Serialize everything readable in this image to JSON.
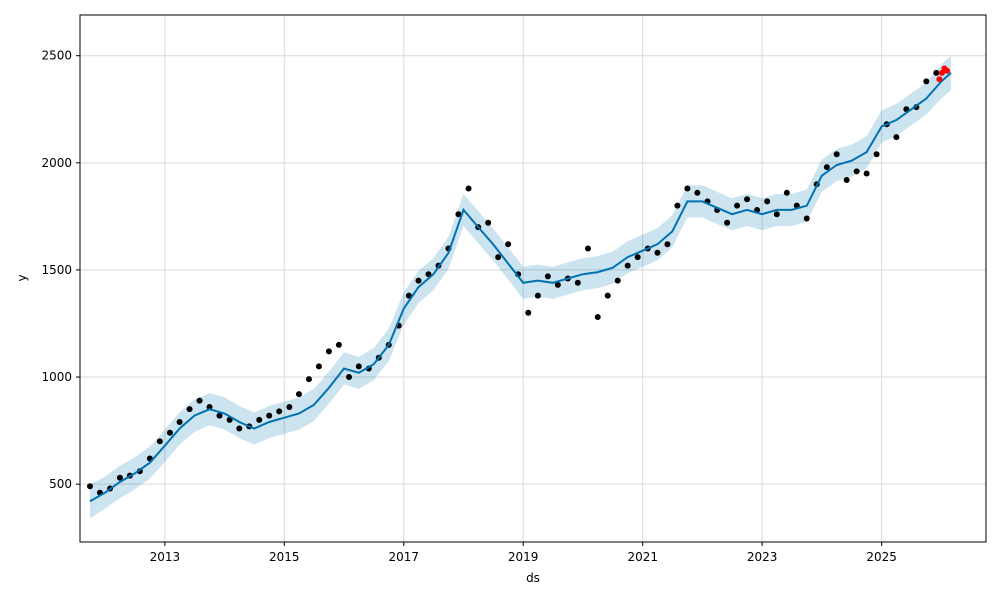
{
  "chart_data": {
    "type": "line",
    "xlabel": "ds",
    "ylabel": "y",
    "x_range": [
      "2011-08-01",
      "2026-10-01"
    ],
    "ylim": [
      230,
      2690
    ],
    "x_ticks": [
      "2013",
      "2015",
      "2017",
      "2019",
      "2021",
      "2023",
      "2025"
    ],
    "y_ticks": [
      500,
      1000,
      1500,
      2000,
      2500
    ],
    "grid": true,
    "colors": {
      "forecast_line": "#0072b2",
      "uncertainty_band": "#0072b2",
      "observations": "#000000",
      "highlight": "#ff0000",
      "grid": "#d9d9d9"
    },
    "forecast_yhat": {
      "dates": [
        "2011-10-01",
        "2012-01-01",
        "2012-04-01",
        "2012-07-01",
        "2012-10-01",
        "2013-01-01",
        "2013-04-01",
        "2013-07-01",
        "2013-10-01",
        "2014-01-01",
        "2014-04-01",
        "2014-07-01",
        "2014-10-01",
        "2015-01-01",
        "2015-04-01",
        "2015-07-01",
        "2015-10-01",
        "2016-01-01",
        "2016-04-01",
        "2016-07-01",
        "2016-10-01",
        "2017-01-01",
        "2017-04-01",
        "2017-07-01",
        "2017-10-01",
        "2018-01-01",
        "2018-04-01",
        "2018-07-01",
        "2018-10-01",
        "2019-01-01",
        "2019-04-01",
        "2019-07-01",
        "2019-10-01",
        "2020-01-01",
        "2020-04-01",
        "2020-07-01",
        "2020-10-01",
        "2021-01-01",
        "2021-04-01",
        "2021-07-01",
        "2021-10-01",
        "2022-01-01",
        "2022-04-01",
        "2022-07-01",
        "2022-10-01",
        "2023-01-01",
        "2023-04-01",
        "2023-07-01",
        "2023-10-01",
        "2024-01-01",
        "2024-04-01",
        "2024-07-01",
        "2024-10-01",
        "2025-01-01",
        "2025-04-01",
        "2025-07-01",
        "2025-10-01",
        "2026-01-01",
        "2026-03-01"
      ],
      "values": [
        420,
        460,
        510,
        550,
        600,
        680,
        760,
        820,
        850,
        830,
        790,
        760,
        790,
        810,
        830,
        870,
        950,
        1040,
        1020,
        1060,
        1150,
        1320,
        1420,
        1480,
        1580,
        1780,
        1700,
        1620,
        1530,
        1440,
        1450,
        1440,
        1460,
        1480,
        1490,
        1510,
        1560,
        1590,
        1620,
        1680,
        1820,
        1820,
        1790,
        1760,
        1780,
        1760,
        1780,
        1780,
        1800,
        1940,
        1990,
        2010,
        2050,
        2170,
        2200,
        2250,
        2300,
        2380,
        2420
      ]
    },
    "uncertainty_band": {
      "dates": [
        "2011-10-01",
        "2012-01-01",
        "2012-04-01",
        "2012-07-01",
        "2012-10-01",
        "2013-01-01",
        "2013-04-01",
        "2013-07-01",
        "2013-10-01",
        "2014-01-01",
        "2014-04-01",
        "2014-07-01",
        "2014-10-01",
        "2015-01-01",
        "2015-04-01",
        "2015-07-01",
        "2015-10-01",
        "2016-01-01",
        "2016-04-01",
        "2016-07-01",
        "2016-10-01",
        "2017-01-01",
        "2017-04-01",
        "2017-07-01",
        "2017-10-01",
        "2018-01-01",
        "2018-04-01",
        "2018-07-01",
        "2018-10-01",
        "2019-01-01",
        "2019-04-01",
        "2019-07-01",
        "2019-10-01",
        "2020-01-01",
        "2020-04-01",
        "2020-07-01",
        "2020-10-01",
        "2021-01-01",
        "2021-04-01",
        "2021-07-01",
        "2021-10-01",
        "2022-01-01",
        "2022-04-01",
        "2022-07-01",
        "2022-10-01",
        "2023-01-01",
        "2023-04-01",
        "2023-07-01",
        "2023-10-01",
        "2024-01-01",
        "2024-04-01",
        "2024-07-01",
        "2024-10-01",
        "2025-01-01",
        "2025-04-01",
        "2025-07-01",
        "2025-10-01",
        "2026-01-01",
        "2026-03-01"
      ],
      "lower": [
        340,
        385,
        435,
        475,
        525,
        605,
        685,
        745,
        775,
        755,
        715,
        685,
        715,
        735,
        755,
        795,
        875,
        965,
        945,
        985,
        1075,
        1245,
        1345,
        1405,
        1505,
        1705,
        1625,
        1545,
        1455,
        1365,
        1375,
        1365,
        1385,
        1405,
        1415,
        1435,
        1485,
        1515,
        1545,
        1605,
        1745,
        1745,
        1715,
        1685,
        1705,
        1685,
        1705,
        1705,
        1725,
        1865,
        1915,
        1935,
        1975,
        2095,
        2125,
        2175,
        2225,
        2300,
        2340
      ],
      "upper": [
        500,
        535,
        585,
        625,
        675,
        755,
        835,
        895,
        925,
        905,
        865,
        835,
        865,
        885,
        905,
        945,
        1025,
        1115,
        1095,
        1135,
        1225,
        1395,
        1495,
        1555,
        1655,
        1855,
        1775,
        1695,
        1605,
        1515,
        1525,
        1515,
        1535,
        1555,
        1565,
        1585,
        1635,
        1665,
        1695,
        1755,
        1895,
        1895,
        1865,
        1835,
        1855,
        1835,
        1855,
        1855,
        1875,
        2015,
        2065,
        2085,
        2125,
        2245,
        2275,
        2325,
        2375,
        2460,
        2500
      ]
    },
    "observations": {
      "dates": [
        "2011-10-01",
        "2011-12-01",
        "2012-02-01",
        "2012-04-01",
        "2012-06-01",
        "2012-08-01",
        "2012-10-01",
        "2012-12-01",
        "2013-02-01",
        "2013-04-01",
        "2013-06-01",
        "2013-08-01",
        "2013-10-01",
        "2013-12-01",
        "2014-02-01",
        "2014-04-01",
        "2014-06-01",
        "2014-08-01",
        "2014-10-01",
        "2014-12-01",
        "2015-02-01",
        "2015-04-01",
        "2015-06-01",
        "2015-08-01",
        "2015-10-01",
        "2015-12-01",
        "2016-02-01",
        "2016-04-01",
        "2016-06-01",
        "2016-08-01",
        "2016-10-01",
        "2016-12-01",
        "2017-02-01",
        "2017-04-01",
        "2017-06-01",
        "2017-08-01",
        "2017-10-01",
        "2017-12-01",
        "2018-02-01",
        "2018-04-01",
        "2018-06-01",
        "2018-08-01",
        "2018-10-01",
        "2018-12-01",
        "2019-02-01",
        "2019-04-01",
        "2019-06-01",
        "2019-08-01",
        "2019-10-01",
        "2019-12-01",
        "2020-02-01",
        "2020-04-01",
        "2020-06-01",
        "2020-08-01",
        "2020-10-01",
        "2020-12-01",
        "2021-02-01",
        "2021-04-01",
        "2021-06-01",
        "2021-08-01",
        "2021-10-01",
        "2021-12-01",
        "2022-02-01",
        "2022-04-01",
        "2022-06-01",
        "2022-08-01",
        "2022-10-01",
        "2022-12-01",
        "2023-02-01",
        "2023-04-01",
        "2023-06-01",
        "2023-08-01",
        "2023-10-01",
        "2023-12-01",
        "2024-02-01",
        "2024-04-01",
        "2024-06-01",
        "2024-08-01",
        "2024-10-01",
        "2024-12-01",
        "2025-02-01",
        "2025-04-01",
        "2025-06-01",
        "2025-08-01",
        "2025-10-01",
        "2025-12-01"
      ],
      "values": [
        490,
        460,
        480,
        530,
        540,
        560,
        620,
        700,
        740,
        790,
        850,
        890,
        860,
        820,
        800,
        760,
        770,
        800,
        820,
        840,
        860,
        920,
        990,
        1050,
        1120,
        1150,
        1000,
        1050,
        1040,
        1090,
        1150,
        1240,
        1380,
        1450,
        1480,
        1520,
        1600,
        1760,
        1880,
        1700,
        1720,
        1560,
        1620,
        1480,
        1300,
        1380,
        1470,
        1430,
        1460,
        1440,
        1600,
        1280,
        1380,
        1450,
        1520,
        1560,
        1600,
        1580,
        1620,
        1800,
        1880,
        1860,
        1820,
        1780,
        1720,
        1800,
        1830,
        1780,
        1820,
        1760,
        1860,
        1800,
        1740,
        1900,
        1980,
        2040,
        1920,
        1960,
        1950,
        2040,
        2180,
        2120,
        2250,
        2260,
        2380,
        2420
      ]
    },
    "highlight": {
      "dates": [
        "2025-12-20",
        "2026-01-05",
        "2026-01-20",
        "2026-02-05"
      ],
      "values": [
        2390,
        2420,
        2440,
        2430
      ]
    }
  }
}
